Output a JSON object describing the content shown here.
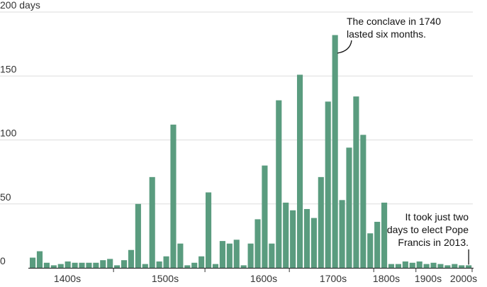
{
  "chart_data": {
    "type": "bar",
    "color": "#5a9c7f",
    "y_unit_label": "200 days",
    "ylim": [
      0,
      200
    ],
    "y_ticks": [
      {
        "value": 200,
        "label": "200 days"
      },
      {
        "value": 150,
        "label": "150"
      },
      {
        "value": 100,
        "label": "100"
      },
      {
        "value": 50,
        "label": "50"
      },
      {
        "value": 0,
        "label": "0"
      }
    ],
    "x_labels": [
      "1400s",
      "1500s",
      "1600s",
      "1700s",
      "1800s",
      "1900s",
      "2000s"
    ],
    "values": [
      8,
      13,
      4,
      2,
      3,
      5,
      4,
      4,
      4,
      4,
      6,
      7,
      2,
      6,
      14,
      50,
      3,
      71,
      5,
      9,
      112,
      19,
      2,
      4,
      9,
      59,
      3,
      21,
      19,
      22,
      2,
      19,
      38,
      80,
      19,
      131,
      51,
      45,
      151,
      46,
      39,
      71,
      130,
      182,
      53,
      94,
      134,
      104,
      27,
      36,
      51,
      3,
      3,
      5,
      4,
      5,
      3,
      4,
      3,
      2,
      3,
      2,
      2
    ],
    "annotations": [
      {
        "lines": [
          "The conclave in 1740",
          "lasted six months."
        ],
        "bar_index": 43
      },
      {
        "lines": [
          "It took just two",
          "days to elect Pope",
          "Francis in 2013."
        ],
        "bar_index": 62
      }
    ]
  }
}
